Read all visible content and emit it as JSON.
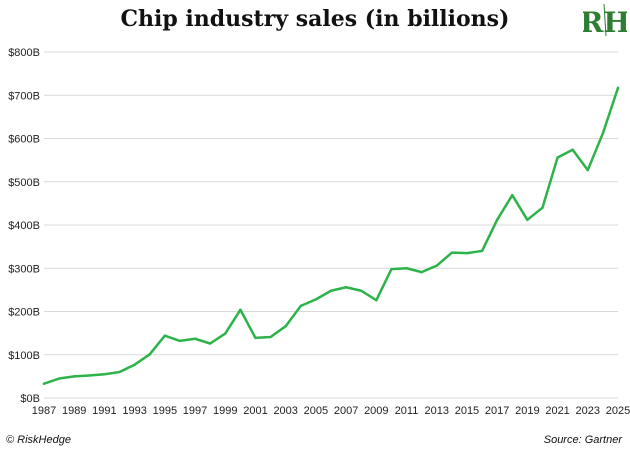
{
  "header": {
    "title": "Chip industry sales (in billions)"
  },
  "logo": {
    "text": "RH",
    "color": "#2e7d32"
  },
  "footer": {
    "credit": "© RiskHedge",
    "source": "Source: Gartner"
  },
  "colors": {
    "line": "#2db34a",
    "grid": "#d9d9d9"
  },
  "chart_data": {
    "type": "line",
    "title": "Chip industry sales (in billions)",
    "xlabel": "",
    "ylabel": "",
    "x": [
      1987,
      1988,
      1989,
      1990,
      1991,
      1992,
      1993,
      1994,
      1995,
      1996,
      1997,
      1998,
      1999,
      2000,
      2001,
      2002,
      2003,
      2004,
      2005,
      2006,
      2007,
      2008,
      2009,
      2010,
      2011,
      2012,
      2013,
      2014,
      2015,
      2016,
      2017,
      2018,
      2019,
      2020,
      2021,
      2022,
      2023,
      2024,
      2025
    ],
    "series": [
      {
        "values": [
          33,
          45,
          50,
          52,
          55,
          60,
          77,
          101,
          144,
          132,
          137,
          126,
          149,
          204,
          139,
          141,
          166,
          213,
          228,
          248,
          256,
          248,
          226,
          298,
          300,
          291,
          306,
          336,
          335,
          340,
          412,
          469,
          412,
          440,
          556,
          574,
          527,
          612,
          717
        ]
      }
    ],
    "xticks": [
      "1987",
      "1989",
      "1991",
      "1993",
      "1995",
      "1997",
      "1999",
      "2001",
      "2003",
      "2005",
      "2007",
      "2009",
      "2011",
      "2013",
      "2015",
      "2017",
      "2019",
      "2021",
      "2023",
      "2025"
    ],
    "yticks": [
      "$0B",
      "$100B",
      "$200B",
      "$300B",
      "$400B",
      "$500B",
      "$600B",
      "$700B",
      "$800B"
    ],
    "ylim": [
      0,
      800
    ],
    "xlim": [
      1987,
      2025
    ],
    "grid": "horizontal",
    "legend": "none"
  }
}
